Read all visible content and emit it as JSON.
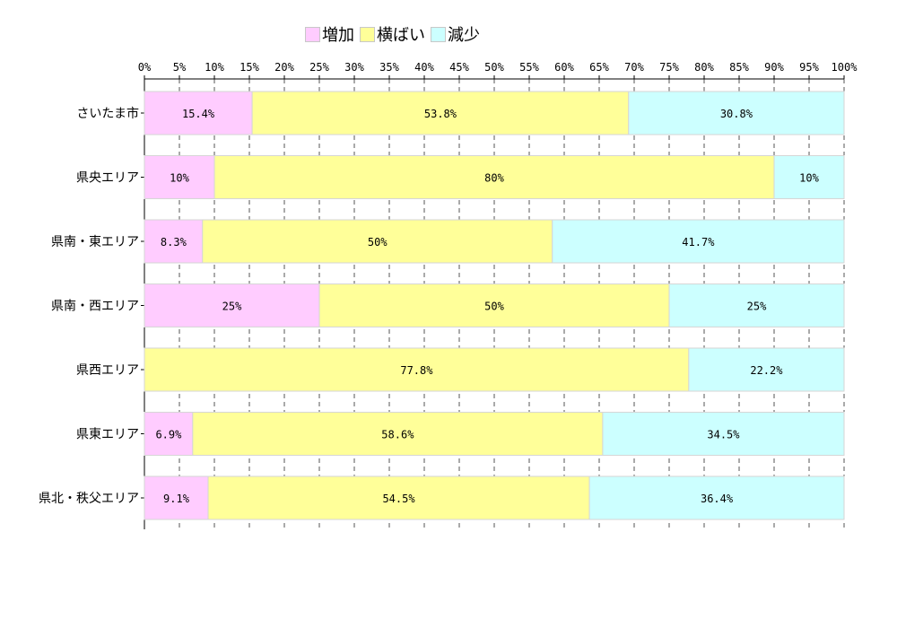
{
  "chart_data": {
    "type": "bar",
    "orientation": "horizontal",
    "stacked": true,
    "title": "",
    "xlabel": "",
    "ylabel": "",
    "xlim": [
      0,
      100
    ],
    "x_ticks": [
      "0%",
      "5%",
      "10%",
      "15%",
      "20%",
      "25%",
      "30%",
      "35%",
      "40%",
      "45%",
      "50%",
      "55%",
      "60%",
      "65%",
      "70%",
      "75%",
      "80%",
      "85%",
      "90%",
      "95%",
      "100%"
    ],
    "grid": "vertical dashed",
    "legend_placement": "top-center",
    "categories": [
      "さいたま市",
      "県央エリア",
      "県南・東エリア",
      "県南・西エリア",
      "県西エリア",
      "県東エリア",
      "県北・秩父エリア"
    ],
    "series": [
      {
        "name": "増加",
        "color": "#ffccff",
        "values": [
          15.4,
          10,
          8.3,
          25,
          0,
          6.9,
          9.1
        ],
        "labels": [
          "15.4%",
          "10%",
          "8.3%",
          "25%",
          "",
          "6.9%",
          "9.1%"
        ]
      },
      {
        "name": "横ばい",
        "color": "#ffff99",
        "values": [
          53.8,
          80,
          50,
          50,
          77.8,
          58.6,
          54.5
        ],
        "labels": [
          "53.8%",
          "80%",
          "50%",
          "50%",
          "77.8%",
          "58.6%",
          "54.5%"
        ]
      },
      {
        "name": "減少",
        "color": "#ccffff",
        "values": [
          30.8,
          10,
          41.7,
          25,
          22.2,
          34.5,
          36.4
        ],
        "labels": [
          "30.8%",
          "10%",
          "41.7%",
          "25%",
          "22.2%",
          "34.5%",
          "36.4%"
        ]
      }
    ]
  }
}
